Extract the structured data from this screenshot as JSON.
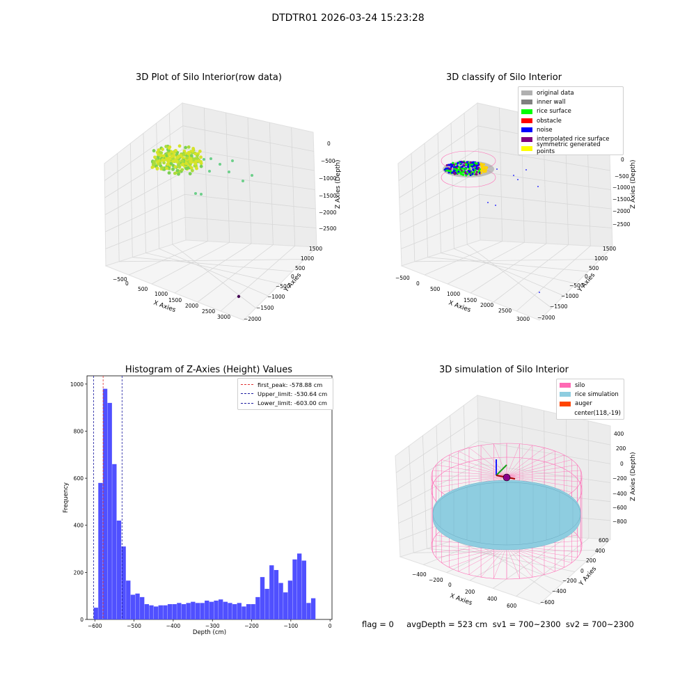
{
  "suptitle": "DTDTR01 2026-03-24 15:23:28",
  "footer": "flag = 0     avgDepth = 523 cm  sv1 = 700~2300  sv2 = 700~2300",
  "colors": {
    "histogram_bar": "#5050ff",
    "first_peak_line": "#e03030",
    "limit_lines": "#1a1aa0",
    "silo_wire": "#ff69b4",
    "rice_surface": "#8ecde0",
    "pane": "#f2f2f2",
    "grid": "#d7d7d7"
  },
  "chart_data": [
    {
      "type": "scatter",
      "title": "3D Plot of Silo Interior(row data)",
      "xlabel": "X Axies",
      "ylabel": "Y Axies",
      "zlabel": "Z Axies (Depth)",
      "x_ticks": [
        "−500",
        "0",
        "500",
        "1000",
        "1500",
        "2000",
        "2500",
        "3000"
      ],
      "y_ticks": [
        "−2000",
        "−1500",
        "−1000",
        "−500",
        "0",
        "500",
        "1000",
        "1500"
      ],
      "z_ticks": [
        "0",
        "−500",
        "−1000",
        "−1500",
        "−2000",
        "−2500"
      ],
      "note": "point cloud colored by depth (viridis-like, mostly yellow-green)"
    },
    {
      "type": "scatter",
      "title": "3D classify of Silo Interior",
      "xlabel": "X Axies",
      "ylabel": "Y Axies",
      "zlabel": "Z Axies (Depth)",
      "x_ticks": [
        "−500",
        "0",
        "500",
        "1000",
        "1500",
        "2000",
        "2500",
        "3000"
      ],
      "y_ticks": [
        "−2000",
        "−1500",
        "−1000",
        "−500",
        "0",
        "500",
        "1000",
        "1500"
      ],
      "z_ticks": [
        "0",
        "−500",
        "−1000",
        "−1500",
        "−2000",
        "−2500"
      ],
      "legend": [
        {
          "label": "original data",
          "color": "#b0b0b0"
        },
        {
          "label": "inner wall",
          "color": "#808080"
        },
        {
          "label": "rice surface",
          "color": "#00ff00"
        },
        {
          "label": "obstacle",
          "color": "#ff0000"
        },
        {
          "label": "noise",
          "color": "#0000ff"
        },
        {
          "label": "interpolated rice surface",
          "color": "#800080"
        },
        {
          "label": "symmetric generated points",
          "color": "#ffff00"
        }
      ]
    },
    {
      "type": "bar",
      "title": "Histogram of Z-Axies (Height) Values",
      "xlabel": "Depth (cm)",
      "ylabel": "Frequency",
      "xlim": [
        -620,
        5
      ],
      "ylim": [
        0,
        1035
      ],
      "x_ticks": [
        -600,
        -500,
        -400,
        -300,
        -200,
        -100,
        0
      ],
      "y_ticks": [
        0,
        200,
        400,
        600,
        800,
        1000
      ],
      "bin_start": -603,
      "bin_width": 11.8,
      "values": [
        50,
        580,
        980,
        920,
        660,
        420,
        310,
        165,
        105,
        110,
        95,
        65,
        60,
        55,
        60,
        60,
        65,
        65,
        70,
        65,
        70,
        75,
        70,
        70,
        80,
        75,
        80,
        85,
        75,
        70,
        65,
        70,
        55,
        65,
        65,
        95,
        180,
        130,
        230,
        210,
        155,
        115,
        165,
        255,
        280,
        250,
        70,
        90
      ],
      "vlines": [
        {
          "label": "first_peak: -578.88 cm",
          "x": -578.88,
          "color": "#e03030"
        },
        {
          "label": "Upper_limit: -530.64 cm",
          "x": -530.64,
          "color": "#1a1aa0"
        },
        {
          "label": "Lower_limit: -603.00 cm",
          "x": -603.0,
          "color": "#1a1aa0"
        }
      ]
    },
    {
      "type": "scatter",
      "title": "3D simulation of Silo Interior",
      "xlabel": "X Axies",
      "ylabel": "Y Axies",
      "zlabel": "Z Axies (Depth)",
      "x_ticks": [
        "−400",
        "−200",
        "0",
        "200",
        "400",
        "600"
      ],
      "y_ticks": [
        "−600",
        "−400",
        "−200",
        "0",
        "200",
        "400",
        "600"
      ],
      "z_ticks": [
        "400",
        "200",
        "0",
        "−200",
        "−400",
        "−600",
        "−800"
      ],
      "legend": [
        {
          "label": "silo",
          "color": "#ff69b4"
        },
        {
          "label": "rice simulation",
          "color": "#8ecde0"
        },
        {
          "label": "auger",
          "color": "#ff4500"
        },
        {
          "label": "center(118,-19)",
          "color": ""
        }
      ]
    }
  ]
}
